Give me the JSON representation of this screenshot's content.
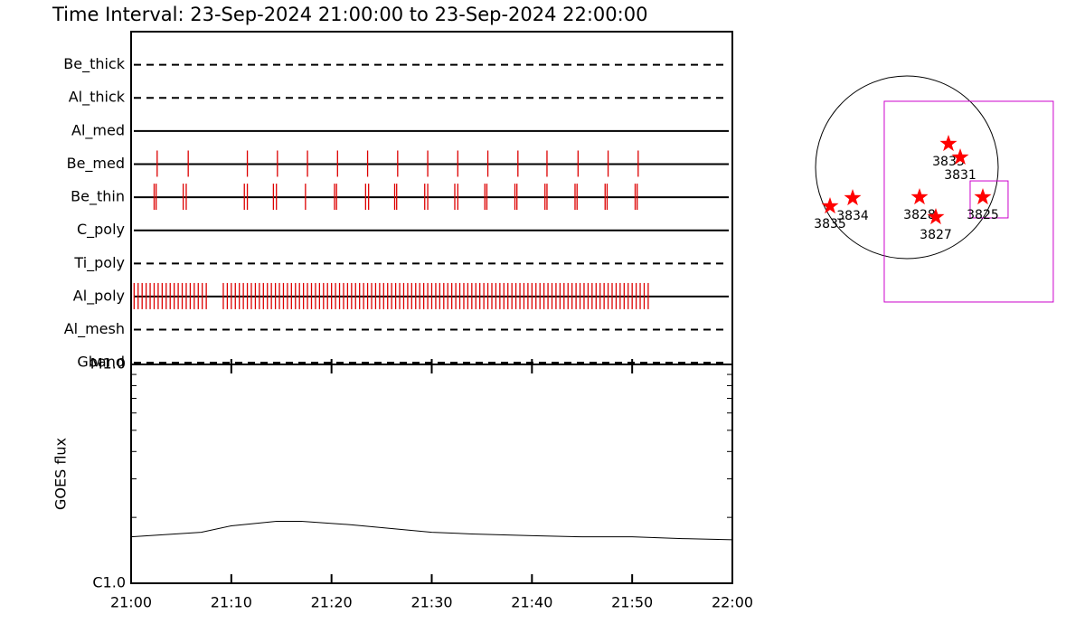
{
  "chart_data": [
    {
      "type": "timeline",
      "title": "Time Interval: 23-Sep-2024 21:00:00 to 23-Sep-2024 22:00:00",
      "xlim": [
        0,
        60
      ],
      "color": "#dd0000",
      "rows": [
        {
          "name": "Be_thick",
          "style": "dashed",
          "times": []
        },
        {
          "name": "Al_thick",
          "style": "dashed",
          "times": []
        },
        {
          "name": "Al_med",
          "style": "solid",
          "times": []
        },
        {
          "name": "Be_med",
          "style": "solid",
          "times": [
            2.6,
            5.7,
            11.6,
            14.6,
            17.6,
            20.6,
            23.6,
            26.6,
            29.6,
            32.6,
            35.6,
            38.6,
            41.5,
            44.6,
            47.6,
            50.6
          ]
        },
        {
          "name": "Be_thin",
          "style": "solid",
          "times": [
            2.3,
            2.5,
            5.2,
            5.5,
            11.3,
            11.6,
            14.2,
            14.5,
            17.4,
            20.3,
            20.5,
            23.4,
            23.7,
            26.3,
            26.5,
            29.3,
            29.6,
            32.3,
            32.6,
            35.3,
            35.5,
            38.3,
            38.5,
            41.3,
            41.5,
            44.3,
            44.5,
            47.3,
            47.5,
            50.3,
            50.5
          ]
        },
        {
          "name": "C_poly",
          "style": "solid",
          "times": []
        },
        {
          "name": "Ti_poly",
          "style": "dashed",
          "times": []
        },
        {
          "name": "Al_poly",
          "style": "solid",
          "times": [
            0.3,
            0.7,
            1.1,
            1.5,
            1.9,
            2.3,
            2.7,
            3.1,
            3.5,
            3.9,
            4.3,
            4.7,
            5.1,
            5.5,
            5.9,
            6.3,
            6.7,
            7.1,
            7.5,
            9.2,
            9.6,
            10,
            10.4,
            10.8,
            11.2,
            11.6,
            12,
            12.4,
            12.8,
            13.2,
            13.6,
            14,
            14.4,
            14.8,
            15.2,
            15.6,
            16,
            16.4,
            16.8,
            17.2,
            17.6,
            18,
            18.4,
            18.8,
            19.2,
            19.6,
            20,
            20.4,
            20.8,
            21.2,
            21.6,
            22,
            22.4,
            22.8,
            23.2,
            23.6,
            24,
            24.4,
            24.8,
            25.2,
            25.6,
            26,
            26.4,
            26.8,
            27.2,
            27.6,
            28,
            28.4,
            28.8,
            29.2,
            29.6,
            30,
            30.4,
            30.8,
            31.2,
            31.6,
            32,
            32.4,
            32.8,
            33.2,
            33.6,
            34,
            34.4,
            34.8,
            35.2,
            35.6,
            36,
            36.4,
            36.8,
            37.2,
            37.6,
            38,
            38.4,
            38.8,
            39.2,
            39.6,
            40,
            40.4,
            40.8,
            41.2,
            41.6,
            42,
            42.4,
            42.8,
            43.2,
            43.6,
            44,
            44.4,
            44.8,
            45.2,
            45.6,
            46,
            46.4,
            46.8,
            47.2,
            47.6,
            48,
            48.4,
            48.8,
            49.2,
            49.6,
            50,
            50.4,
            50.8,
            51.2,
            51.6
          ]
        },
        {
          "name": "Al_mesh",
          "style": "dashed",
          "times": []
        },
        {
          "name": "Gband",
          "style": "dashed",
          "times": []
        }
      ]
    },
    {
      "type": "line",
      "ylabel": "GOES flux",
      "log_y": true,
      "color": "#000000",
      "x": [
        0,
        7,
        10,
        14.5,
        17,
        22,
        30,
        34,
        40,
        45,
        50,
        55,
        60
      ],
      "values": [
        1.63e-06,
        1.71e-06,
        1.83e-06,
        1.92e-06,
        1.92e-06,
        1.85e-06,
        1.71e-06,
        1.68e-06,
        1.65e-06,
        1.63e-06,
        1.63e-06,
        1.6e-06,
        1.58e-06
      ],
      "xlim": [
        0,
        60
      ],
      "xticks": [
        {
          "value": 0,
          "label": "21:00"
        },
        {
          "value": 10,
          "label": "21:10"
        },
        {
          "value": 20,
          "label": "21:20"
        },
        {
          "value": 30,
          "label": "21:30"
        },
        {
          "value": 40,
          "label": "21:40"
        },
        {
          "value": 50,
          "label": "21:50"
        },
        {
          "value": 60,
          "label": "22:00"
        }
      ],
      "ylim": [
        1e-06,
        1e-05
      ],
      "yticks": [
        {
          "value": 1e-05,
          "label": "M1.0"
        },
        {
          "value": 1e-06,
          "label": "C1.0"
        }
      ],
      "yminorticks": [
        2e-06,
        3e-06,
        4e-06,
        5e-06,
        6e-06,
        7e-06,
        8e-06,
        9e-06
      ]
    },
    {
      "type": "map",
      "solar_radius": 960,
      "region_color": "#ff0000",
      "fov_color": "#cc00cc",
      "regions": [
        {
          "label": "3833",
          "x": 437,
          "y": 247
        },
        {
          "label": "3831",
          "x": 561,
          "y": 105
        },
        {
          "label": "3828",
          "x": 133,
          "y": -314
        },
        {
          "label": "3827",
          "x": 304,
          "y": -523
        },
        {
          "label": "3825",
          "x": 798,
          "y": -314
        },
        {
          "label": "3835",
          "x": -808,
          "y": -409
        },
        {
          "label": "3834",
          "x": -570,
          "y": -323
        }
      ],
      "fov": [
        {
          "xlim": [
            -238,
            1539
          ],
          "ylim": [
            -1416,
            694
          ]
        },
        {
          "xlim": [
            665,
            1064
          ],
          "ylim": [
            -532,
            -143
          ]
        }
      ]
    }
  ]
}
